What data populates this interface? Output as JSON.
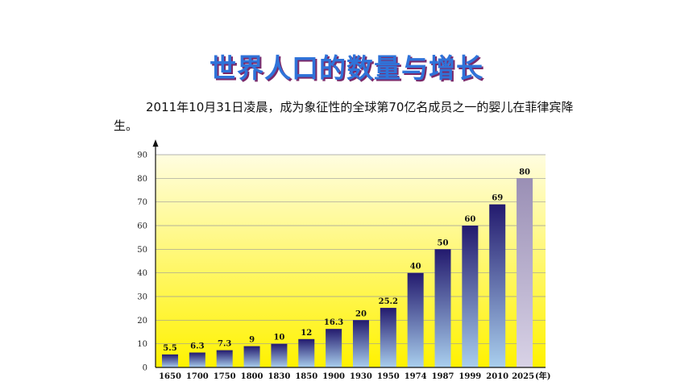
{
  "page": {
    "title": "世界人口的数量与增长",
    "paragraph": "2011年10月31日凌晨，成为象征性的全球第70亿名成员之一的婴儿在菲律宾降生。"
  },
  "chart_data": {
    "type": "bar",
    "title": "",
    "xlabel": "",
    "x_unit": "(年)",
    "ylabel": "",
    "ylim": [
      0,
      90
    ],
    "yticks": [
      0,
      10,
      20,
      30,
      40,
      50,
      60,
      70,
      80,
      90
    ],
    "grid": true,
    "categories": [
      "1650",
      "1700",
      "1750",
      "1800",
      "1830",
      "1850",
      "1900",
      "1930",
      "1950",
      "1974",
      "1987",
      "1999",
      "2010",
      "2025"
    ],
    "values": [
      5.5,
      6.3,
      7.3,
      9,
      10,
      12,
      16.3,
      20,
      25.2,
      40,
      50,
      60,
      69,
      80
    ],
    "value_labels": [
      "5.5",
      "6.3",
      "7.3",
      "9",
      "10",
      "12",
      "16.3",
      "20",
      "25.2",
      "40",
      "50",
      "60",
      "69",
      "80"
    ],
    "projected_categories": [
      "2025"
    ],
    "colors": {
      "bar_top": "#231a6e",
      "bar_bottom": "#a9cfee",
      "projected_top": "#9a8fb5",
      "projected_bottom": "#d8d2e6",
      "background_top": "#fffde0",
      "background_bottom": "#fff200"
    }
  }
}
